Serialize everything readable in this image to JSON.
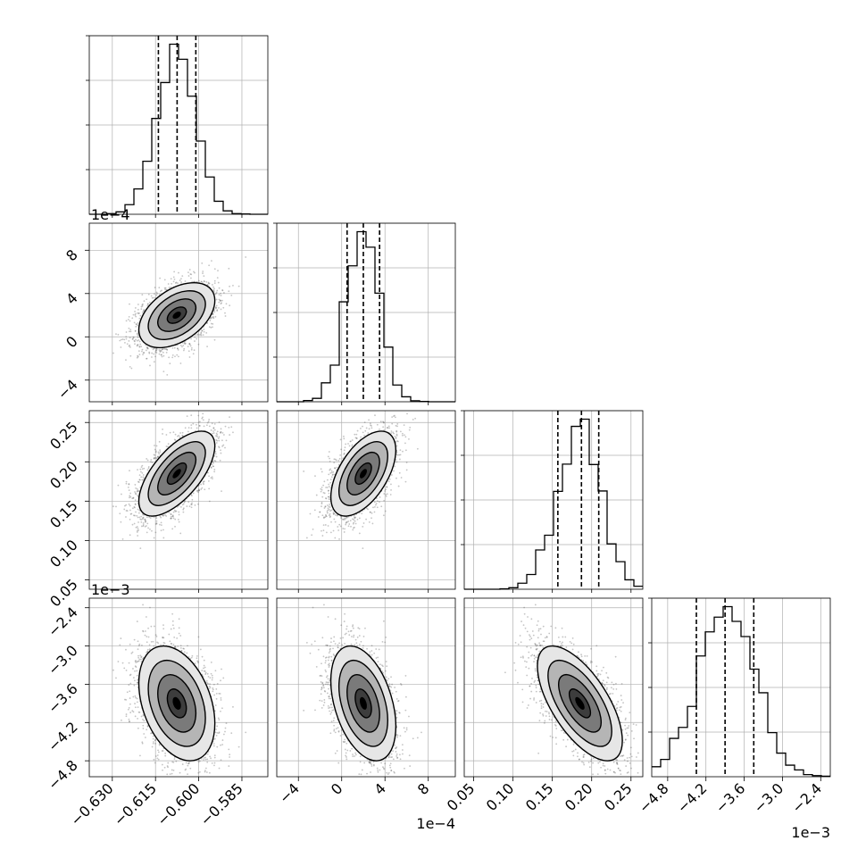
{
  "chart_data": {
    "type": "corner",
    "params": [
      {
        "name": "",
        "range": [
          -0.638,
          -0.576
        ],
        "ticks": [
          -0.63,
          -0.615,
          -0.6,
          -0.585
        ],
        "tick_labels": [
          "−0.630",
          "−0.615",
          "−0.600",
          "−0.585"
        ],
        "offset": "",
        "mean": -0.6076,
        "sd": 0.0066,
        "quantiles": [
          -0.614,
          -0.6075,
          -0.601
        ]
      },
      {
        "name": "",
        "range": [
          -0.0006,
          0.00105
        ],
        "ticks": [
          -0.0004,
          0,
          0.0004,
          0.0008
        ],
        "tick_labels": [
          "−4",
          "0",
          "4",
          "8"
        ],
        "offset": "1e−4",
        "mean": 0.0002,
        "sd": 0.00015,
        "quantiles": [
          5e-05,
          0.0002,
          0.00035
        ]
      },
      {
        "name": "",
        "range": [
          0.038,
          0.265
        ],
        "ticks": [
          0.05,
          0.1,
          0.15,
          0.2,
          0.25
        ],
        "tick_labels": [
          "0.05",
          "0.10",
          "0.15",
          "0.20",
          "0.25"
        ],
        "offset": "",
        "mean": 0.185,
        "sd": 0.027,
        "quantiles": [
          0.157,
          0.187,
          0.209
        ]
      },
      {
        "name": "",
        "range": [
          -0.00505,
          -0.00225
        ],
        "ticks": [
          -0.0048,
          -0.0042,
          -0.0036,
          -0.003,
          -0.0024
        ],
        "tick_labels": [
          "−4.8",
          "−4.2",
          "−3.6",
          "−3.0",
          "−2.4"
        ],
        "offset": "1e−3",
        "mean": -0.0039,
        "sd": 0.00045,
        "quantiles": [
          -0.00435,
          -0.0039,
          -0.00345
        ]
      }
    ],
    "correlations": {
      "1-0": 0.45,
      "2-0": 0.65,
      "2-1": 0.55,
      "3-0": -0.35,
      "3-1": -0.4,
      "3-2": -0.65
    },
    "histogram_bins": 20,
    "quantile_levels": [
      0.16,
      0.5,
      0.84
    ],
    "contour_levels_sigma": [
      0.5,
      1.0,
      1.5,
      2.0
    ],
    "grid": true,
    "colors": {
      "line": "#000000",
      "grid": "#b0b0b0",
      "points": "#555555"
    }
  }
}
